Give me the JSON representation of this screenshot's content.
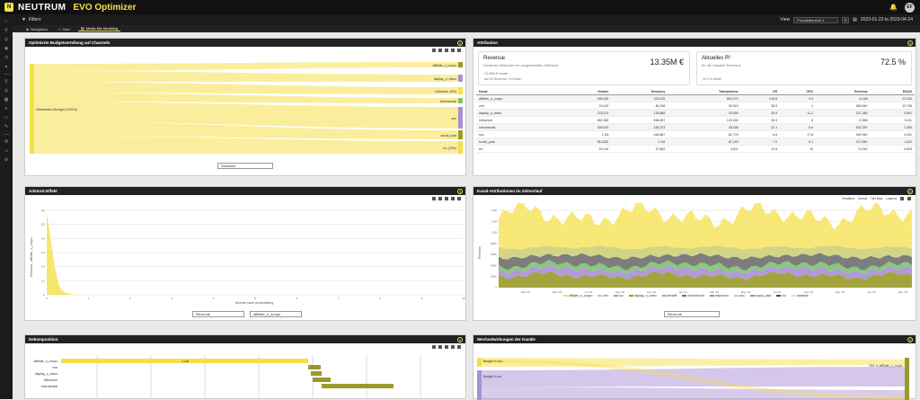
{
  "app": {
    "brand": "NEUTRUM",
    "title": "EVO Optimizer",
    "logo_letter": "N",
    "user_initials": "EF"
  },
  "filterbar": {
    "filter_label": "Filters",
    "view_label": "View",
    "view_value": "Produktbereich 1",
    "date_range": "2023-01-23 to 2023-04-24"
  },
  "tabs": [
    {
      "label": "Navigation"
    },
    {
      "label": "Start"
    },
    {
      "label": "Media Mix Modeling"
    }
  ],
  "colors": {
    "accent": "#f5e04a",
    "dark": "#222222",
    "olive": "#9a9a2a",
    "purple": "#a98fd6",
    "green": "#7cc36a"
  },
  "sankey": {
    "title": "Optimierte Budgetverteilung auf Channels",
    "source_label": "Gesamtes Budget (100%)",
    "targets": [
      "affiliate_n_coupo",
      "display_n_video",
      "influencer (5%)",
      "Informercial",
      "seo",
      "social_paid",
      "tvc (16%)"
    ],
    "dropdown": "Sessions"
  },
  "attribution": {
    "title": "Attribution",
    "revenue_card": {
      "title": "Revenue",
      "subtitle": "Gesamte Attribution im ausgewählten Zeitraum",
      "value": "13.35M €",
      "opt1": "13.35M € Kosten",
      "opt2": "auf 26 Revenue / 6 Kosten"
    },
    "r2_card": {
      "title": "Aktuelles R²",
      "subtitle": "für die Variable Revenue",
      "value": "72.5 %",
      "opt1": "16.0 % Abfall"
    },
    "columns": [
      "Kanal",
      "Kosten",
      "Sessions",
      "Transactions",
      "CR",
      "CPO",
      "Revenue",
      "ROAS"
    ],
    "rows": [
      [
        "affiliate_n_coupo",
        "185,345",
        "325,515",
        "864,270",
        "215.8",
        "0.5",
        "4.14M",
        "22.334"
      ],
      [
        "crm",
        "20,000",
        "80,096",
        "30,915",
        "38.5",
        "1",
        "489.54K",
        "10.795"
      ],
      [
        "display_n_video",
        "278,379",
        "128,886",
        "15,090",
        "30.9",
        "11.2",
        "227.18K",
        "0.891"
      ],
      [
        "Influencer",
        "582,380",
        "596,857",
        "120,246",
        "28.3",
        "6",
        "2.28M",
        "3.911"
      ],
      [
        "Informercial",
        "408,000",
        "183,373",
        "48,188",
        "22.1",
        "6.6",
        "533.22K",
        "1.306"
      ],
      [
        "seo",
        "1.1M",
        "446,867",
        "81,775",
        "6.6",
        "17.8",
        "549.93K",
        "0.491"
      ],
      [
        "social_paid",
        "513,832",
        "1.1M",
        "87,159",
        "7.9",
        "6.1",
        "971.09K",
        "1.822"
      ],
      [
        "tvc",
        "92,144",
        "37,862",
        "4,601",
        "12.8",
        "10",
        "74.11K",
        "0.843"
      ]
    ]
  },
  "adstock": {
    "title": "Adstock-Effekt",
    "ylabel": "Revenue - affiliate_n_coupo",
    "xlabel": "Wochen nach Ausstrahlung",
    "xticks": [
      "0",
      "1",
      "2",
      "3",
      "4",
      "5",
      "6",
      "7",
      "8",
      "9",
      "10"
    ],
    "yticks": [
      "0",
      "0.1",
      "0.2",
      "0.3",
      "0.4",
      "0.5",
      "0.6"
    ],
    "dropdown1": "Revenue",
    "dropdown2": "affiliate_n_coupo"
  },
  "timeline": {
    "title": "Kanal-Attributionen im Zeitverlauf",
    "ylabel": "Revenue",
    "yticks": [
      "0",
      "200K",
      "400K",
      "600K",
      "800K",
      "1.0M",
      "1.2M",
      "1.4M"
    ],
    "xticks": [
      "Mar '20",
      "May '20",
      "Jul '20",
      "Sep '20",
      "Nov '20",
      "Jan '21",
      "Mar '21",
      "May '21",
      "Jul '21",
      "Sep '21",
      "Nov '21",
      "Jan '22",
      "Mar '22"
    ],
    "zoom_buttons": [
      "Realtime",
      "Monat",
      "Tief Max",
      "Legend"
    ],
    "legend": [
      {
        "name": "affiliate_n_coupo",
        "color": "#f5e04a"
      },
      {
        "name": "crm",
        "color": "#cfcf7a"
      },
      {
        "name": "tvc",
        "color": "#a98fd6"
      },
      {
        "name": "display_n_video",
        "color": "#9a9a2a"
      },
      {
        "name": "benefit",
        "color": "#7cc36a"
      },
      {
        "name": "Informercial",
        "color": "#6f6f6f"
      },
      {
        "name": "Influencer",
        "color": "#5aa0d8"
      },
      {
        "name": "seo",
        "color": "#e8b9b9"
      },
      {
        "name": "social_paid",
        "color": "#b07ab8"
      },
      {
        "name": "tvc",
        "color": "#4a4a4a"
      },
      {
        "name": "baseline",
        "color": "#f0e28a"
      }
    ],
    "dropdown": "Revenue"
  },
  "decomp": {
    "title": "Dekomposition",
    "labels": [
      "affiliate_n_coupo",
      "crm",
      "display_n_video",
      "Influencer",
      "Informercial"
    ],
    "bar_label": "4.14M"
  },
  "interactions": {
    "title": "Wechselwirkungen der Kanäle",
    "left_labels": [
      "Budget in seo",
      "Budget in tvc"
    ],
    "right_labels": [
      "Ref. in affiliate_n_coupo"
    ]
  }
}
